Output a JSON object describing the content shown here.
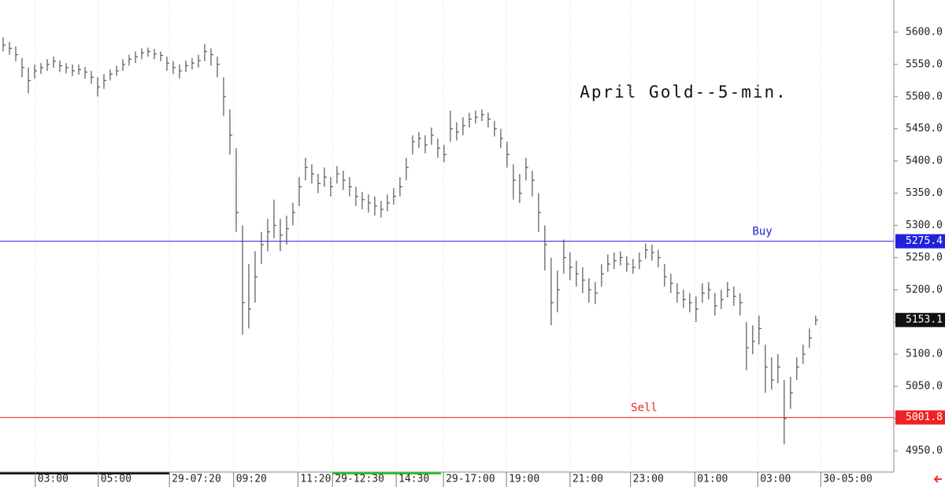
{
  "chart_data": {
    "type": "ohlc",
    "title": "April Gold--5-min.",
    "color": "#555555",
    "high": [
      5592,
      5585,
      5578,
      5560,
      5545,
      5550,
      5552,
      5558,
      5562,
      5556,
      5552,
      5550,
      5550,
      5546,
      5540,
      5530,
      5535,
      5542,
      5548,
      5558,
      5565,
      5570,
      5575,
      5576,
      5574,
      5570,
      5562,
      5555,
      5550,
      5556,
      5560,
      5565,
      5582,
      5575,
      5562,
      5530,
      5480,
      5420,
      5300,
      5240,
      5260,
      5290,
      5310,
      5340,
      5310,
      5315,
      5335,
      5375,
      5405,
      5395,
      5380,
      5390,
      5375,
      5392,
      5385,
      5375,
      5360,
      5352,
      5348,
      5345,
      5338,
      5348,
      5358,
      5375,
      5405,
      5440,
      5445,
      5440,
      5452,
      5435,
      5425,
      5478,
      5460,
      5468,
      5475,
      5478,
      5480,
      5475,
      5462,
      5450,
      5430,
      5395,
      5380,
      5405,
      5385,
      5350,
      5300,
      5250,
      5230,
      5278,
      5258,
      5245,
      5235,
      5218,
      5212,
      5240,
      5255,
      5258,
      5260,
      5252,
      5248,
      5258,
      5272,
      5270,
      5262,
      5240,
      5225,
      5210,
      5200,
      5195,
      5190,
      5210,
      5212,
      5195,
      5200,
      5212,
      5205,
      5195,
      5150,
      5145,
      5160,
      5115,
      5095,
      5100,
      5060,
      5065,
      5095,
      5115,
      5140,
      5160
    ],
    "low": [
      5570,
      5565,
      5555,
      5530,
      5505,
      5528,
      5535,
      5540,
      5545,
      5538,
      5536,
      5532,
      5534,
      5528,
      5520,
      5500,
      5512,
      5525,
      5532,
      5540,
      5548,
      5552,
      5558,
      5562,
      5558,
      5555,
      5540,
      5535,
      5528,
      5538,
      5542,
      5545,
      5555,
      5548,
      5530,
      5470,
      5410,
      5290,
      5130,
      5140,
      5180,
      5240,
      5260,
      5280,
      5260,
      5270,
      5300,
      5330,
      5370,
      5365,
      5350,
      5360,
      5345,
      5365,
      5355,
      5345,
      5330,
      5325,
      5320,
      5315,
      5312,
      5322,
      5332,
      5345,
      5370,
      5410,
      5420,
      5412,
      5425,
      5405,
      5398,
      5430,
      5432,
      5440,
      5452,
      5458,
      5462,
      5452,
      5438,
      5420,
      5390,
      5340,
      5335,
      5370,
      5345,
      5290,
      5230,
      5145,
      5165,
      5225,
      5215,
      5205,
      5195,
      5180,
      5178,
      5205,
      5228,
      5232,
      5238,
      5228,
      5225,
      5232,
      5248,
      5245,
      5235,
      5205,
      5195,
      5180,
      5172,
      5165,
      5150,
      5180,
      5185,
      5160,
      5170,
      5188,
      5175,
      5160,
      5075,
      5100,
      5115,
      5040,
      5045,
      5055,
      4960,
      5015,
      5060,
      5085,
      5110,
      5145
    ],
    "close": [
      5580,
      5575,
      5565,
      5545,
      5525,
      5540,
      5545,
      5550,
      5555,
      5548,
      5545,
      5540,
      5542,
      5538,
      5530,
      5515,
      5525,
      5535,
      5540,
      5550,
      5558,
      5562,
      5568,
      5570,
      5566,
      5564,
      5552,
      5545,
      5540,
      5548,
      5552,
      5556,
      5570,
      5565,
      5550,
      5500,
      5440,
      5320,
      5180,
      5170,
      5220,
      5270,
      5290,
      5300,
      5285,
      5295,
      5320,
      5360,
      5390,
      5380,
      5365,
      5375,
      5360,
      5380,
      5370,
      5360,
      5345,
      5340,
      5335,
      5330,
      5325,
      5335,
      5345,
      5360,
      5390,
      5430,
      5435,
      5425,
      5440,
      5420,
      5410,
      5450,
      5445,
      5455,
      5465,
      5468,
      5472,
      5465,
      5450,
      5435,
      5410,
      5370,
      5350,
      5390,
      5370,
      5320,
      5270,
      5180,
      5200,
      5250,
      5235,
      5225,
      5215,
      5200,
      5195,
      5225,
      5240,
      5245,
      5250,
      5240,
      5235,
      5245,
      5262,
      5258,
      5250,
      5220,
      5210,
      5195,
      5185,
      5180,
      5170,
      5195,
      5200,
      5175,
      5185,
      5200,
      5190,
      5180,
      5110,
      5120,
      5140,
      5080,
      5060,
      5080,
      5000,
      5040,
      5080,
      5100,
      5125,
      5153.1
    ],
    "xlim": [
      -0.5,
      141.4
    ],
    "xticks": [
      {
        "value": 5.1,
        "label": "03:00"
      },
      {
        "value": 15.1,
        "label": "05:00"
      },
      {
        "value": 26.4,
        "label": "29-07:20"
      },
      {
        "value": 36.6,
        "label": "09:20"
      },
      {
        "value": 46.8,
        "label": "11:20"
      },
      {
        "value": 52.3,
        "label": "29-12:30"
      },
      {
        "value": 62.4,
        "label": "14:30"
      },
      {
        "value": 69.9,
        "label": "29-17:00"
      },
      {
        "value": 79.9,
        "label": "19:00"
      },
      {
        "value": 90,
        "label": "21:00"
      },
      {
        "value": 99.6,
        "label": "23:00"
      },
      {
        "value": 109.8,
        "label": "01:00"
      },
      {
        "value": 119.8,
        "label": "03:00"
      },
      {
        "value": 129.8,
        "label": "30-05:00"
      }
    ],
    "ylim": [
      4917,
      5650
    ],
    "yticks": [
      {
        "value": 4950,
        "label": "4950.0"
      },
      {
        "value": 5000,
        "label": "5000.0"
      },
      {
        "value": 5050,
        "label": "5050.0"
      },
      {
        "value": 5100,
        "label": "5100.0"
      },
      {
        "value": 5150,
        "label": "5150.0"
      },
      {
        "value": 5200,
        "label": "5200.0"
      },
      {
        "value": 5250,
        "label": "5250.0"
      },
      {
        "value": 5300,
        "label": "5300.0"
      },
      {
        "value": 5350,
        "label": "5350.0"
      },
      {
        "value": 5400,
        "label": "5400.0"
      },
      {
        "value": 5450,
        "label": "5450.0"
      },
      {
        "value": 5500,
        "label": "5500.0"
      },
      {
        "value": 5550,
        "label": "5550.0"
      },
      {
        "value": 5600,
        "label": "5600.0"
      }
    ],
    "lines": [
      {
        "name": "Buy",
        "value": 5275.4,
        "color": "#2222dd"
      },
      {
        "name": "Sell",
        "value": 5001.8,
        "color": "#ee2222"
      }
    ]
  }
}
